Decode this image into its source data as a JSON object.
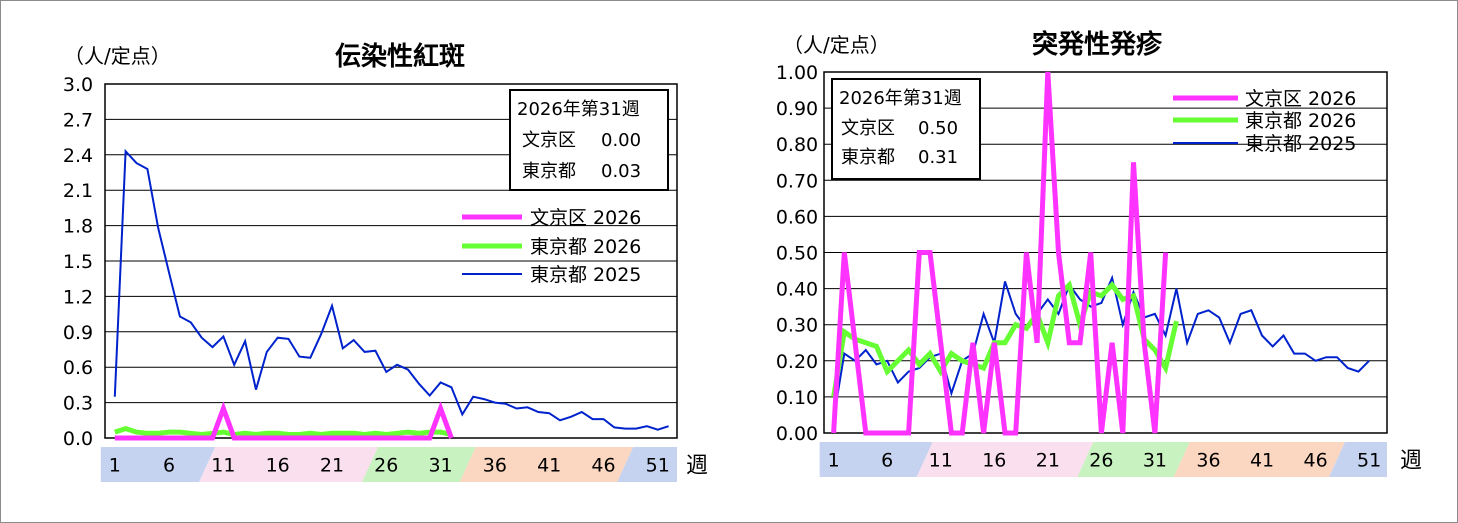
{
  "chart_data": [
    {
      "type": "line",
      "title": "伝染性紅斑",
      "unit_label": "（人/定点）",
      "x_axis_label": "週",
      "x_ticks": [
        "1",
        "6",
        "11",
        "16",
        "21",
        "26",
        "31",
        "36",
        "41",
        "46",
        "51"
      ],
      "y_ticks": [
        "3.0",
        "2.7",
        "2.4",
        "2.1",
        "1.8",
        "1.5",
        "1.2",
        "0.9",
        "0.6",
        "0.3",
        "0.0"
      ],
      "ylim": [
        0,
        3.0
      ],
      "xlim": [
        1,
        53
      ],
      "grid": true,
      "legend_position": "right",
      "info_box": {
        "heading": "2026年第31週",
        "rows": [
          {
            "label": "文京区",
            "value": "0.00"
          },
          {
            "label": "東京都",
            "value": "0.03"
          }
        ]
      },
      "series": [
        {
          "name": "文京区 2026",
          "color": "#ff33ff",
          "width": 5,
          "values": [
            0,
            0,
            0,
            0,
            0,
            0,
            0,
            0,
            0,
            0,
            0.25,
            0,
            0,
            0,
            0,
            0,
            0,
            0,
            0,
            0,
            0,
            0,
            0,
            0,
            0,
            0,
            0,
            0,
            0,
            0,
            0.25,
            0
          ]
        },
        {
          "name": "東京都 2026",
          "color": "#66ff33",
          "width": 5,
          "values": [
            0.05,
            0.08,
            0.05,
            0.04,
            0.04,
            0.05,
            0.05,
            0.04,
            0.03,
            0.04,
            0.05,
            0.03,
            0.04,
            0.03,
            0.04,
            0.04,
            0.03,
            0.03,
            0.04,
            0.03,
            0.04,
            0.04,
            0.04,
            0.03,
            0.04,
            0.03,
            0.04,
            0.05,
            0.04,
            0.05,
            0.05,
            0.03
          ]
        },
        {
          "name": "東京都 2025",
          "color": "#0022cc",
          "width": 2,
          "values": [
            0.35,
            2.43,
            2.33,
            2.28,
            1.78,
            1.4,
            1.03,
            0.98,
            0.85,
            0.77,
            0.86,
            0.62,
            0.82,
            0.41,
            0.73,
            0.85,
            0.84,
            0.69,
            0.68,
            0.88,
            1.12,
            0.76,
            0.83,
            0.73,
            0.74,
            0.56,
            0.62,
            0.58,
            0.46,
            0.36,
            0.47,
            0.43,
            0.2,
            0.35,
            0.33,
            0.3,
            0.29,
            0.25,
            0.26,
            0.22,
            0.21,
            0.15,
            0.18,
            0.22,
            0.16,
            0.16,
            0.09,
            0.08,
            0.08,
            0.1,
            0.07,
            0.1
          ]
        }
      ]
    },
    {
      "type": "line",
      "title": "突発性発疹",
      "unit_label": "（人/定点）",
      "x_axis_label": "週",
      "x_ticks": [
        "1",
        "6",
        "11",
        "16",
        "21",
        "26",
        "31",
        "36",
        "41",
        "46",
        "51"
      ],
      "y_ticks": [
        "1.00",
        "0.90",
        "0.80",
        "0.70",
        "0.60",
        "0.50",
        "0.40",
        "0.30",
        "0.20",
        "0.10",
        "0.00"
      ],
      "ylim": [
        0,
        1.0
      ],
      "xlim": [
        1,
        53
      ],
      "grid": true,
      "legend_position": "top-right",
      "info_box": {
        "heading": "2026年第31週",
        "rows": [
          {
            "label": "文京区",
            "value": "0.50"
          },
          {
            "label": "東京都",
            "value": "0.31"
          }
        ]
      },
      "series": [
        {
          "name": "文京区 2026",
          "color": "#ff33ff",
          "width": 5,
          "values": [
            0,
            0.5,
            0.25,
            0,
            0,
            0,
            0,
            0,
            0.5,
            0.5,
            0.25,
            0,
            0,
            0.25,
            0,
            0.25,
            0,
            0,
            0.5,
            0.25,
            1.0,
            0.5,
            0.25,
            0.25,
            0.5,
            0,
            0.25,
            0,
            0.75,
            0.25,
            0,
            0.5
          ]
        },
        {
          "name": "東京都 2026",
          "color": "#66ff33",
          "width": 5,
          "values": [
            0.1,
            0.28,
            0.26,
            0.25,
            0.24,
            0.17,
            0.2,
            0.23,
            0.19,
            0.22,
            0.17,
            0.22,
            0.2,
            0.19,
            0.18,
            0.25,
            0.25,
            0.3,
            0.29,
            0.33,
            0.25,
            0.38,
            0.41,
            0.3,
            0.39,
            0.38,
            0.41,
            0.37,
            0.38,
            0.26,
            0.23,
            0.18,
            0.31
          ]
        },
        {
          "name": "東京都 2025",
          "color": "#0022cc",
          "width": 2,
          "values": [
            0.04,
            0.22,
            0.2,
            0.23,
            0.19,
            0.2,
            0.14,
            0.17,
            0.18,
            0.21,
            0.22,
            0.11,
            0.2,
            0.22,
            0.33,
            0.25,
            0.42,
            0.33,
            0.29,
            0.33,
            0.37,
            0.33,
            0.41,
            0.37,
            0.35,
            0.36,
            0.43,
            0.3,
            0.39,
            0.32,
            0.33,
            0.27,
            0.4,
            0.25,
            0.33,
            0.34,
            0.32,
            0.25,
            0.33,
            0.34,
            0.27,
            0.24,
            0.27,
            0.22,
            0.22,
            0.2,
            0.21,
            0.21,
            0.18,
            0.17,
            0.2
          ]
        }
      ]
    }
  ]
}
